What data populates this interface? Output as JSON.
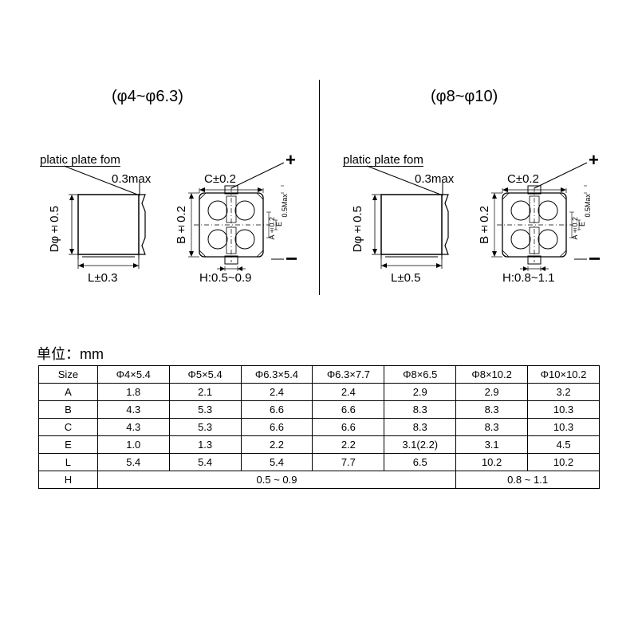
{
  "titles": {
    "left": "(φ4~φ6.3)",
    "right": "(φ8~φ10)"
  },
  "labels": {
    "platic": "platic plate fom",
    "offset": "0.3max",
    "D": "Dφ±0.5",
    "L_left": "L±0.3",
    "L_right": "L±0.5",
    "B": "B±0.2",
    "C": "C±0.2",
    "H_left": "H:0.5~0.9",
    "H_right": "H:0.8~1.1",
    "A": "A±0.2",
    "E": "E",
    "half": "0.5Max",
    "plus": "+",
    "minus": "−"
  },
  "units_label": "单位：mm",
  "table": {
    "headers": [
      "Size",
      "Φ4×5.4",
      "Φ5×5.4",
      "Φ6.3×5.4",
      "Φ6.3×7.7",
      "Φ8×6.5",
      "Φ8×10.2",
      "Φ10×10.2"
    ],
    "rows": [
      [
        "A",
        "1.8",
        "2.1",
        "2.4",
        "2.4",
        "2.9",
        "2.9",
        "3.2"
      ],
      [
        "B",
        "4.3",
        "5.3",
        "6.6",
        "6.6",
        "8.3",
        "8.3",
        "10.3"
      ],
      [
        "C",
        "4.3",
        "5.3",
        "6.6",
        "6.6",
        "8.3",
        "8.3",
        "10.3"
      ],
      [
        "E",
        "1.0",
        "1.3",
        "2.2",
        "2.2",
        "3.1(2.2)",
        "3.1",
        "4.5"
      ],
      [
        "L",
        "5.4",
        "5.4",
        "5.4",
        "7.7",
        "6.5",
        "10.2",
        "10.2"
      ]
    ],
    "hrow": {
      "label": "H",
      "span1": "0.5 ~ 0.9",
      "span2": "0.8 ~ 1.1"
    }
  },
  "svg": {
    "stroke": "#000000",
    "fill_dark": "#333333"
  }
}
